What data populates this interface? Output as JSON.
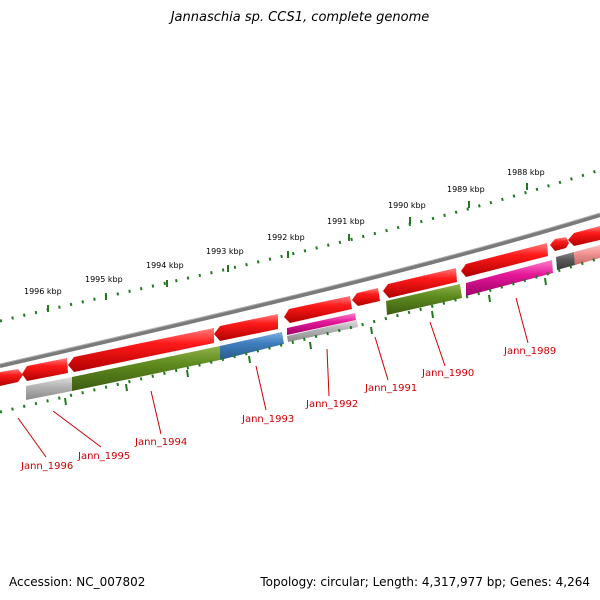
{
  "title": "Jannaschia sp. CCS1, complete genome",
  "footer": {
    "accession": "Accession: NC_007802",
    "summary": "Topology: circular; Length: 4,317,977 bp; Genes: 4,264"
  },
  "colors": {
    "backbone": "#7a7a7a",
    "ticks": "#1f7a1f",
    "label_text": "#cc0000",
    "leader_line": "#cc0000",
    "red_gene": "#e8161b",
    "olive_gene": "#5e8a1e",
    "blue_gene": "#3f7fbf",
    "magenta_gene": "#e5189a",
    "grey_gene": "#b5b5b5",
    "dark_grey_gene": "#5a5a5a",
    "pink_gene": "#f49595"
  },
  "scale_labels": [
    "1988 kbp",
    "1989 kbp",
    "1990 kbp",
    "1991 kbp",
    "1992 kbp",
    "1993 kbp",
    "1994 kbp",
    "1995 kbp",
    "1996 kbp"
  ],
  "gene_labels": [
    "Jann_1989",
    "Jann_1990",
    "Jann_1991",
    "Jann_1992",
    "Jann_1993",
    "Jann_1994",
    "Jann_1995",
    "Jann_1996"
  ]
}
